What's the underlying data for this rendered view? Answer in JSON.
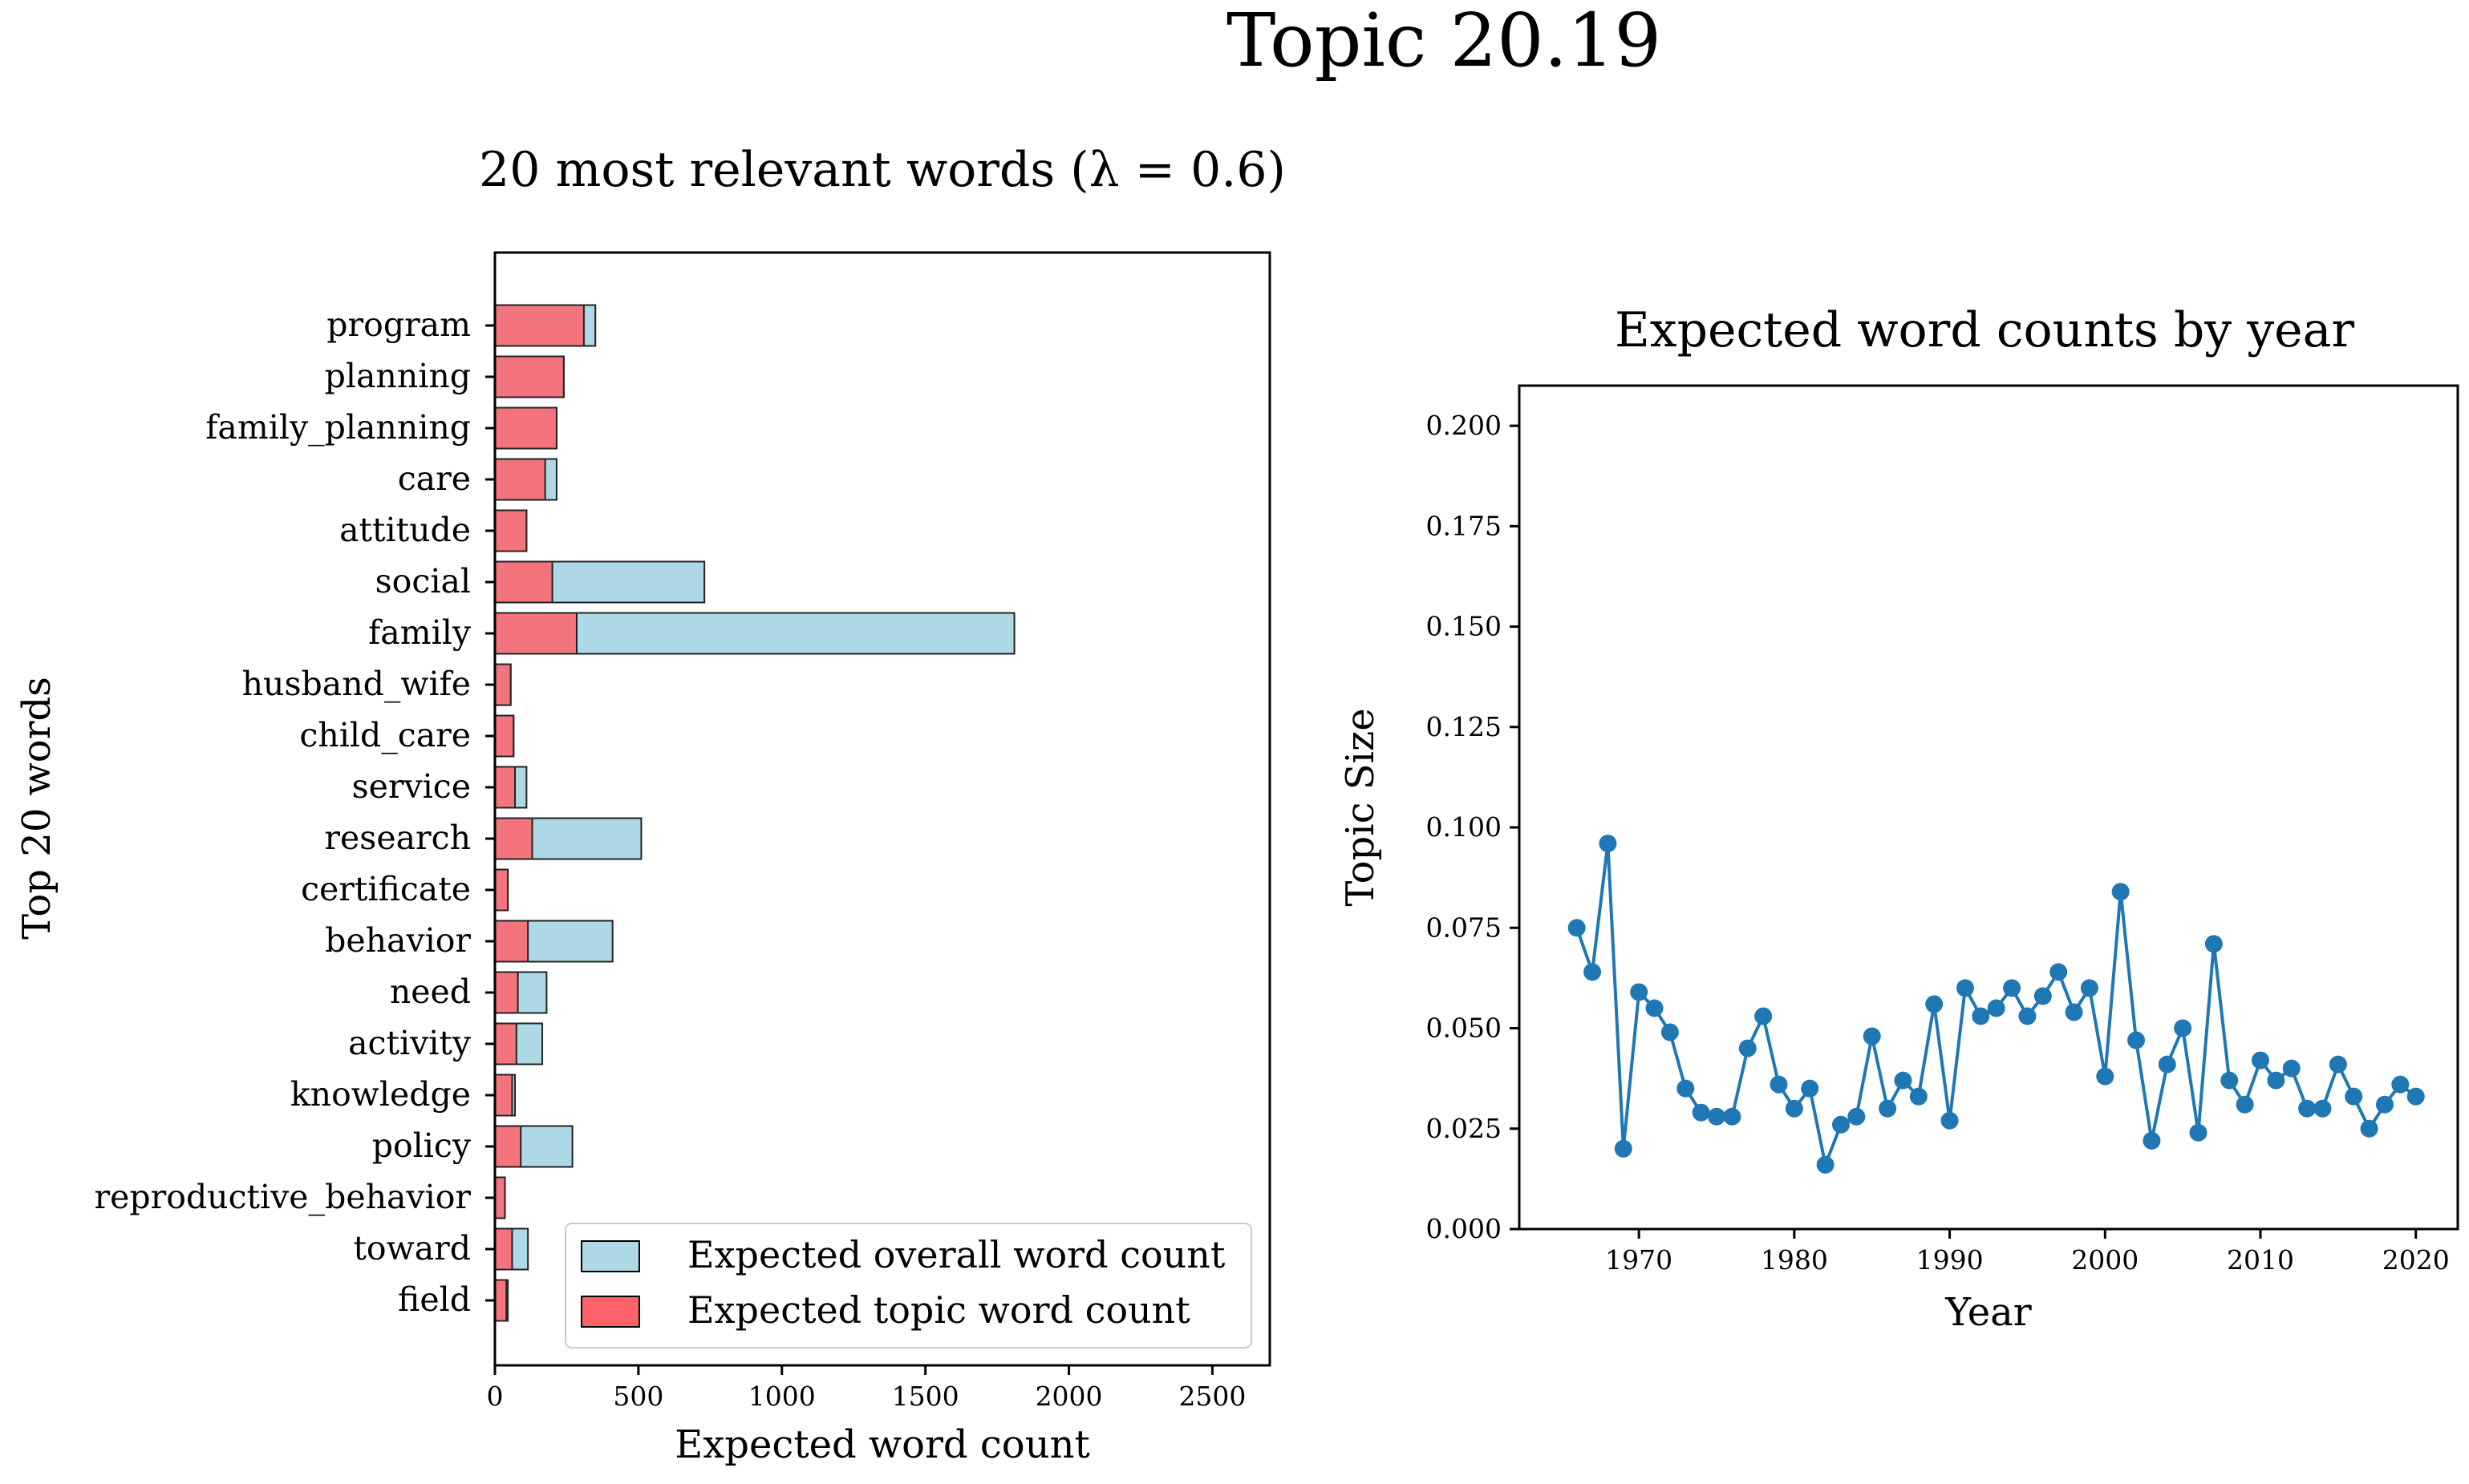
{
  "suptitle": "Topic 20.19",
  "bar_title": "20 most relevant words (λ = 0.6)",
  "line_title": "Expected word counts by year",
  "colors": {
    "overall_bar": "#add8e6",
    "topic_bar": "#ff6369",
    "line": "#1f77b4"
  },
  "chart_data": [
    {
      "type": "bar",
      "orientation": "horizontal",
      "title": "20 most relevant words (λ = 0.6)",
      "xlabel": "Expected word count",
      "ylabel": "Top 20 words",
      "xlim": [
        0,
        2700
      ],
      "xticks": [
        0,
        500,
        1000,
        1500,
        2000,
        2500
      ],
      "categories": [
        "program",
        "planning",
        "family_planning",
        "care",
        "attitude",
        "social",
        "family",
        "husband_wife",
        "child_care",
        "service",
        "research",
        "certificate",
        "behavior",
        "need",
        "activity",
        "knowledge",
        "policy",
        "reproductive_behavior",
        "toward",
        "field"
      ],
      "series": [
        {
          "name": "Expected overall word count",
          "values": [
            350,
            240,
            215,
            215,
            110,
            730,
            1810,
            55,
            65,
            110,
            510,
            45,
            410,
            180,
            165,
            70,
            270,
            35,
            115,
            45
          ]
        },
        {
          "name": "Expected topic word count",
          "values": [
            310,
            240,
            215,
            175,
            110,
            200,
            285,
            55,
            65,
            70,
            130,
            45,
            115,
            80,
            75,
            60,
            90,
            35,
            60,
            40
          ]
        }
      ],
      "legend": "lower-right"
    },
    {
      "type": "line",
      "title": "Expected word counts by year",
      "xlabel": "Year",
      "ylabel": "Topic Size",
      "xlim": [
        1962.3,
        2022.7
      ],
      "ylim": [
        0,
        0.21
      ],
      "xticks": [
        1970,
        1980,
        1990,
        2000,
        2010,
        2020
      ],
      "yticks": [
        "0.000",
        "0.025",
        "0.050",
        "0.075",
        "0.100",
        "0.125",
        "0.150",
        "0.175",
        "0.200"
      ],
      "x": [
        1966,
        1967,
        1968,
        1969,
        1970,
        1971,
        1972,
        1973,
        1974,
        1975,
        1976,
        1977,
        1978,
        1979,
        1980,
        1981,
        1982,
        1983,
        1984,
        1985,
        1986,
        1987,
        1988,
        1989,
        1990,
        1991,
        1992,
        1993,
        1994,
        1995,
        1996,
        1997,
        1998,
        1999,
        2000,
        2001,
        2002,
        2003,
        2004,
        2005,
        2006,
        2007,
        2008,
        2009,
        2010,
        2011,
        2012,
        2013,
        2014,
        2015,
        2016,
        2017,
        2018,
        2019,
        2020
      ],
      "y": [
        0.075,
        0.064,
        0.096,
        0.02,
        0.059,
        0.055,
        0.049,
        0.035,
        0.029,
        0.028,
        0.028,
        0.045,
        0.053,
        0.036,
        0.03,
        0.035,
        0.016,
        0.026,
        0.028,
        0.048,
        0.03,
        0.037,
        0.033,
        0.056,
        0.027,
        0.06,
        0.053,
        0.055,
        0.06,
        0.053,
        0.058,
        0.064,
        0.054,
        0.06,
        0.038,
        0.084,
        0.047,
        0.022,
        0.041,
        0.05,
        0.024,
        0.071,
        0.037,
        0.031,
        0.042,
        0.037,
        0.04,
        0.03,
        0.03,
        0.041,
        0.033,
        0.025,
        0.031,
        0.036,
        0.033
      ]
    }
  ]
}
